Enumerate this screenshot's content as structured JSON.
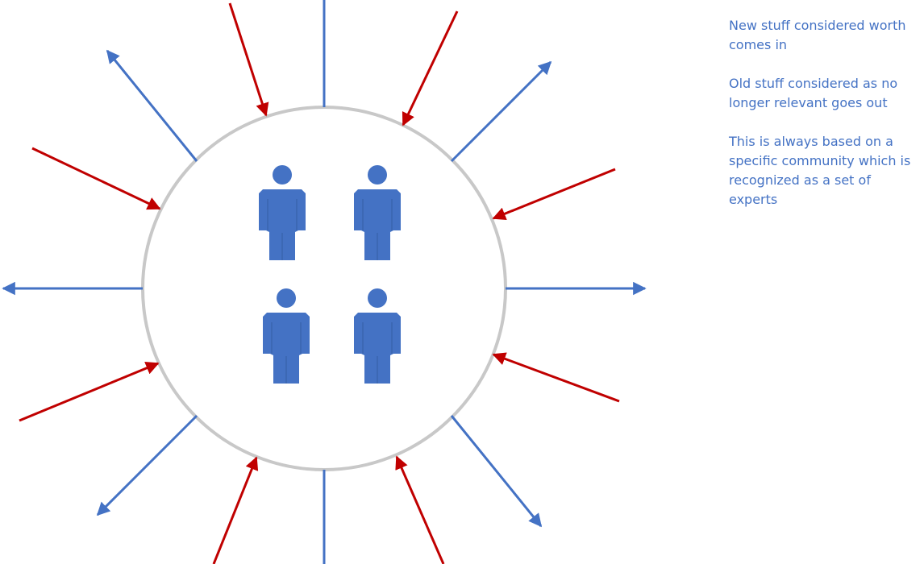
{
  "colors": {
    "outgoing": "#4472c4",
    "incoming": "#c00000",
    "circle": "#c8c8c8",
    "person": "#4472c4",
    "text": "#4472c4"
  },
  "icons": {
    "person": "person-icon",
    "incoming_arrow": "incoming-arrow",
    "outgoing_arrow": "outgoing-arrow"
  },
  "diagram": {
    "community_size": 4,
    "incoming_arrow_count": 8,
    "outgoing_arrow_count": 6,
    "plain_line_count": 2
  },
  "notes": [
    "New stuff considered worth comes in",
    "Old stuff considered as no longer relevant goes out",
    "This is always based on a specific community which is recognized as a set of experts"
  ]
}
